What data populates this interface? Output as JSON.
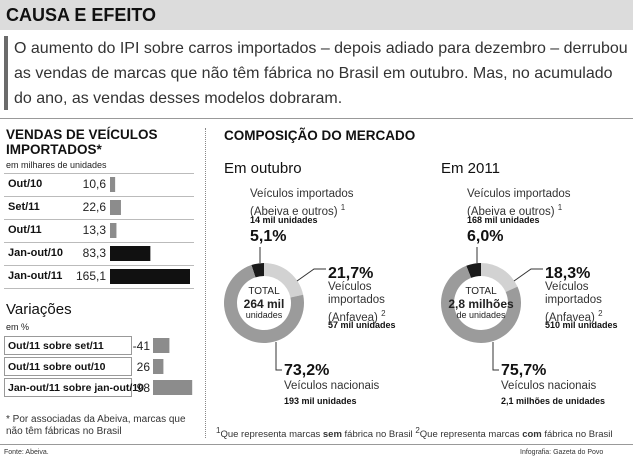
{
  "header": {
    "title": "CAUSA E EFEITO"
  },
  "intro": "O aumento do IPI sobre carros importados – depois adiado para dezembro – derrubou as vendas de marcas que não têm fábrica no Brasil em outubro. Mas, no acumulado do ano, as vendas desses modelos dobraram.",
  "market_title": "COMPOSIÇÃO DO MERCADO",
  "chart_data": [
    {
      "type": "bar",
      "orientation": "horizontal",
      "title": "VENDAS DE VEÍCULOS IMPORTADOS*",
      "subtitle": "em milhares de unidades",
      "categories": [
        "Out/10",
        "Set/11",
        "Out/11",
        "Jan-out/10",
        "Jan-out/11"
      ],
      "values": [
        10.6,
        22.6,
        13.3,
        83.3,
        165.1
      ],
      "value_labels": [
        "10,6",
        "22,6",
        "13,3",
        "83,3",
        "165,1"
      ],
      "colors": [
        "#8c8c8c",
        "#8c8c8c",
        "#8c8c8c",
        "#111111",
        "#111111"
      ]
    },
    {
      "type": "bar",
      "orientation": "horizontal",
      "title": "Variações",
      "subtitle": "em %",
      "categories": [
        "Out/11 sobre set/11",
        "Out/11 sobre out/10",
        "Jan-out/11 sobre jan-out/10"
      ],
      "values": [
        -41,
        26,
        98
      ],
      "color": "#8c8c8c"
    },
    {
      "type": "pie",
      "title": "Em outubro",
      "center_label": "TOTAL",
      "center_value": "264 mil",
      "center_unit": "unidades",
      "categories": [
        {
          "name": "Veículos importados (Abeiva e outros)",
          "ref": "1"
        },
        {
          "name": "Veículos importados (Anfavea)",
          "ref": "2"
        },
        {
          "name": "Veículos nacionais"
        }
      ],
      "values": [
        5.1,
        21.7,
        73.2
      ],
      "value_labels": [
        "5,1%",
        "21,7%",
        "73,2%"
      ],
      "unit_labels": [
        "14 mil unidades",
        "57 mil unidades",
        "193 mil unidades"
      ],
      "colors": [
        "#1a1a1a",
        "#d2d2d2",
        "#9b9b9b"
      ]
    },
    {
      "type": "pie",
      "title": "Em 2011",
      "center_label": "TOTAL",
      "center_value": "2,8 milhões",
      "center_unit": "de unidades",
      "categories": [
        {
          "name": "Veículos importados (Abeiva e outros)",
          "ref": "1"
        },
        {
          "name": "Veículos importados (Anfavea)",
          "ref": "2"
        },
        {
          "name": "Veículos nacionais"
        }
      ],
      "values": [
        6.0,
        18.3,
        75.7
      ],
      "value_labels": [
        "6,0%",
        "18,3%",
        "75,7%"
      ],
      "unit_labels": [
        "168 mil unidades",
        "510 mil unidades",
        "2,1 milhões de unidades"
      ],
      "colors": [
        "#1a1a1a",
        "#d2d2d2",
        "#9b9b9b"
      ]
    }
  ],
  "footnotes": {
    "asterisk": "* Por associadas da Abeiva, marcas que não têm fábricas no Brasil",
    "notes": [
      {
        "ref": "1",
        "parts": [
          "Que representa marcas ",
          "sem",
          " fábrica no Brasil"
        ]
      },
      {
        "ref": "2",
        "parts": [
          "Que representa marcas ",
          "com",
          " fábrica no Brasil"
        ]
      }
    ]
  },
  "source": "Fonte: Abeiva.",
  "credit": "Infografia: Gazeta do Povo"
}
